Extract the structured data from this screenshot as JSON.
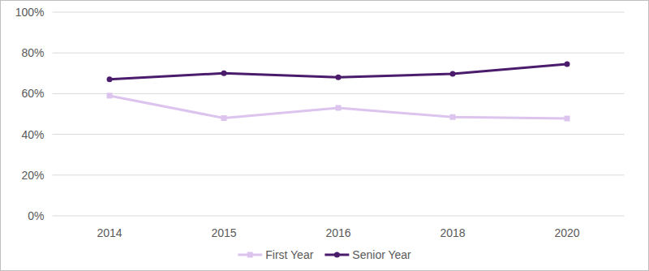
{
  "chart_data": {
    "type": "line",
    "categories": [
      "2014",
      "2015",
      "2016",
      "2018",
      "2020"
    ],
    "series": [
      {
        "name": "First Year",
        "color": "#dcc4ee",
        "marker": "square",
        "line_style": "solid",
        "values": [
          59,
          48,
          53,
          48.5,
          47.8
        ]
      },
      {
        "name": "Senior Year",
        "color": "#4b1c6c",
        "marker": "circle",
        "line_style": "solid",
        "values": [
          67,
          70,
          68,
          69.7,
          74.5
        ]
      }
    ],
    "ylim": [
      0,
      100
    ],
    "yticks": [
      {
        "value": 0,
        "label": "0%"
      },
      {
        "value": 20,
        "label": "20%"
      },
      {
        "value": 40,
        "label": "40%"
      },
      {
        "value": 60,
        "label": "60%"
      },
      {
        "value": 80,
        "label": "80%"
      },
      {
        "value": 100,
        "label": "100%"
      }
    ],
    "grid": true,
    "legend": "bottom"
  }
}
